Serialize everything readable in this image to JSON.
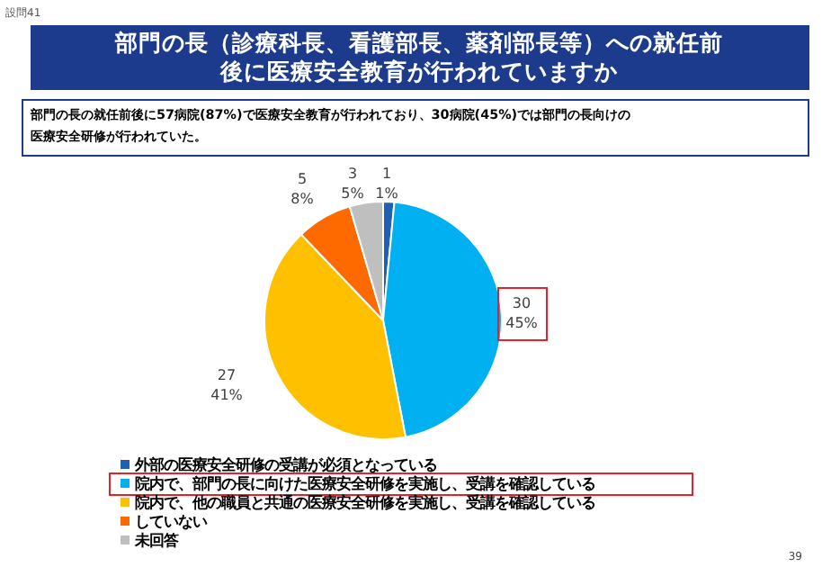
{
  "chart_data": {
    "type": "pie",
    "title": "部門の長（診療科長、看護部長、薬剤部長等）への就任前後に医療安全教育が行われていますか",
    "subtitle": "部門の長の就任前後に57病院(87%)で医療安全教育が行われており、30病院(45%)では部門の長向けの医療安全研修が行われていた。",
    "categories": [
      "外部の医療安全研修の受講が必須となっている",
      "院内で、部門の長に向けた医療安全研修を実施し、受講を確認している",
      "院内で、他の職員と共通の医療安全研修を実施し、受講を確認している",
      "していない",
      "未回答"
    ],
    "values": [
      1,
      30,
      27,
      5,
      3
    ],
    "value_labels": [
      "1\n1%",
      "30\n45%",
      "27\n41%",
      "5\n8%",
      "3\n5%"
    ],
    "colors": [
      "#1f5fb4",
      "#00b0f0",
      "#ffc000",
      "#ff6a00",
      "#bfbfbf"
    ],
    "legend": "bottom",
    "annotations": [
      "設問41",
      "39"
    ]
  }
}
